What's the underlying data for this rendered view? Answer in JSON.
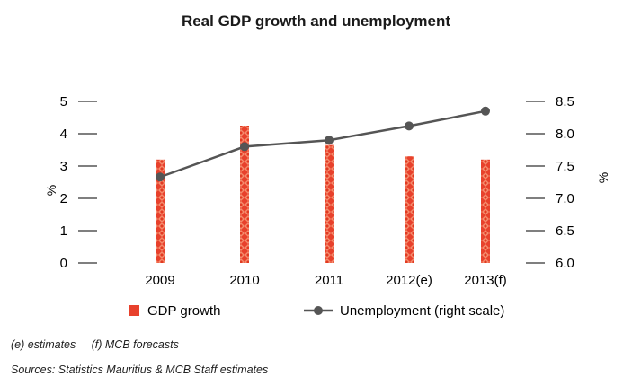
{
  "chart_data": {
    "type": "bar+line",
    "title": "Real GDP growth and unemployment",
    "categories": [
      "2009",
      "2010",
      "2011",
      "2012(e)",
      "2013(f)"
    ],
    "series": [
      {
        "name": "GDP growth",
        "type": "bar",
        "axis": "left",
        "values": [
          3.2,
          4.25,
          3.65,
          3.3,
          3.2
        ],
        "color": "#e8412c"
      },
      {
        "name": "Unemployment (right scale)",
        "type": "line",
        "axis": "right",
        "values": [
          7.33,
          7.8,
          7.9,
          8.12,
          8.35
        ],
        "color": "#555555"
      }
    ],
    "ylabel": "%",
    "ylabel_right": "%",
    "ylim": [
      0,
      5
    ],
    "ylim_right": [
      6.0,
      8.5
    ],
    "yticks": [
      "0",
      "1",
      "2",
      "3",
      "4",
      "5"
    ],
    "yticks_right": [
      "6.0",
      "6.5",
      "7.0",
      "7.5",
      "8.0",
      "8.5"
    ],
    "grid": false,
    "legend_position": "bottom"
  },
  "notes": {
    "estimates": "(e) estimates",
    "forecasts": "(f) MCB forecasts",
    "sources": "Sources: Statistics Mauritius & MCB Staff estimates"
  }
}
